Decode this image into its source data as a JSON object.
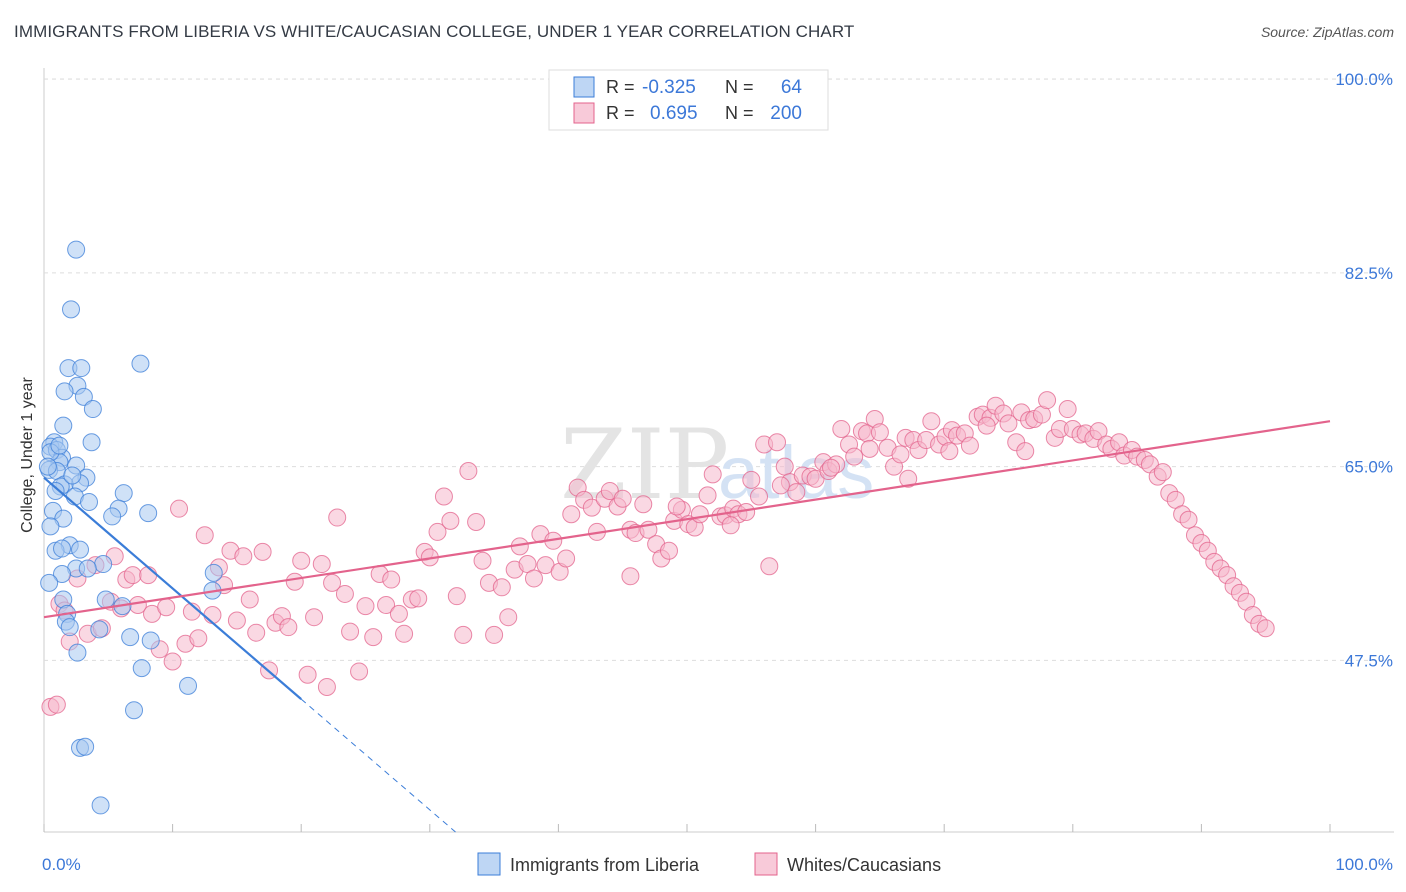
{
  "title": "IMMIGRANTS FROM LIBERIA VS WHITE/CAUCASIAN COLLEGE, UNDER 1 YEAR CORRELATION CHART",
  "source": "Source: ZipAtlas.com",
  "watermark": "ZIPatlas",
  "colors": {
    "blue": "#3b7dd8",
    "blue_fill": "#a8c8f0",
    "pink": "#e3638c",
    "pink_fill": "#f5b8cc",
    "tick_label": "#3c78d8"
  },
  "legend_stats": [
    {
      "r_label": "R =",
      "r_value": "-0.325",
      "n_label": "N =",
      "n_value": "64"
    },
    {
      "r_label": "R =",
      "r_value": "0.695",
      "n_label": "N =",
      "n_value": "200"
    }
  ],
  "chart_data": {
    "type": "scatter",
    "ylabel": "College, Under 1 year",
    "xlabel": "",
    "xlim": [
      0,
      100
    ],
    "ylim": [
      32,
      101
    ],
    "x_tick_labels": [
      {
        "value": 0,
        "label": "0.0%"
      },
      {
        "value": 100,
        "label": "100.0%"
      }
    ],
    "y_tick_labels": [
      {
        "value": 100.0,
        "label": "100.0%"
      },
      {
        "value": 82.5,
        "label": "82.5%"
      },
      {
        "value": 65.0,
        "label": "65.0%"
      },
      {
        "value": 47.5,
        "label": "47.5%"
      }
    ],
    "series": [
      {
        "name": "Immigrants from Liberia",
        "color": "blue",
        "trend": {
          "x0": 0,
          "y0": 64.0,
          "x1": 20,
          "y1": 44.0,
          "dash_to_x": 32
        },
        "points": [
          [
            2.5,
            84.6
          ],
          [
            2.1,
            79.2
          ],
          [
            7.5,
            74.3
          ],
          [
            1.9,
            73.9
          ],
          [
            2.9,
            73.9
          ],
          [
            2.6,
            72.3
          ],
          [
            1.6,
            71.8
          ],
          [
            3.1,
            71.3
          ],
          [
            3.8,
            70.2
          ],
          [
            1.5,
            68.7
          ],
          [
            3.7,
            67.2
          ],
          [
            0.8,
            67.2
          ],
          [
            0.5,
            66.8
          ],
          [
            1.0,
            66.5
          ],
          [
            1.4,
            65.8
          ],
          [
            1.2,
            65.4
          ],
          [
            2.5,
            65.1
          ],
          [
            0.4,
            64.7
          ],
          [
            1.0,
            64.6
          ],
          [
            3.3,
            64.0
          ],
          [
            2.8,
            63.5
          ],
          [
            1.6,
            63.4
          ],
          [
            1.3,
            63.2
          ],
          [
            0.9,
            62.8
          ],
          [
            2.4,
            62.3
          ],
          [
            6.2,
            62.6
          ],
          [
            5.8,
            61.2
          ],
          [
            3.5,
            61.8
          ],
          [
            0.7,
            61.0
          ],
          [
            8.1,
            60.8
          ],
          [
            1.5,
            60.3
          ],
          [
            5.3,
            60.5
          ],
          [
            0.5,
            59.6
          ],
          [
            2.0,
            57.9
          ],
          [
            0.9,
            57.4
          ],
          [
            1.4,
            57.6
          ],
          [
            2.8,
            57.5
          ],
          [
            4.6,
            56.2
          ],
          [
            2.5,
            55.8
          ],
          [
            3.4,
            55.8
          ],
          [
            1.4,
            55.3
          ],
          [
            13.2,
            55.4
          ],
          [
            0.4,
            54.5
          ],
          [
            13.1,
            53.8
          ],
          [
            1.5,
            53.0
          ],
          [
            4.8,
            53.0
          ],
          [
            6.1,
            52.4
          ],
          [
            1.8,
            51.7
          ],
          [
            1.7,
            51.0
          ],
          [
            2.0,
            50.5
          ],
          [
            4.3,
            50.3
          ],
          [
            6.7,
            49.6
          ],
          [
            8.3,
            49.3
          ],
          [
            2.6,
            48.2
          ],
          [
            7.6,
            46.8
          ],
          [
            11.2,
            45.2
          ],
          [
            7.0,
            43.0
          ],
          [
            2.8,
            39.6
          ],
          [
            3.2,
            39.7
          ],
          [
            4.4,
            34.4
          ],
          [
            0.5,
            66.3
          ],
          [
            1.2,
            66.9
          ],
          [
            0.3,
            65.0
          ],
          [
            2.2,
            64.2
          ]
        ]
      },
      {
        "name": "Whites/Caucasians",
        "color": "pink",
        "trend": {
          "x0": 0,
          "y0": 51.4,
          "x1": 100,
          "y1": 69.1
        },
        "points": [
          [
            0.5,
            43.3
          ],
          [
            1.0,
            43.5
          ],
          [
            1.2,
            52.6
          ],
          [
            1.6,
            52.0
          ],
          [
            2.0,
            49.2
          ],
          [
            2.6,
            54.9
          ],
          [
            3.4,
            49.9
          ],
          [
            4.0,
            56.1
          ],
          [
            4.5,
            50.4
          ],
          [
            5.2,
            52.8
          ],
          [
            5.5,
            56.9
          ],
          [
            6.0,
            52.2
          ],
          [
            6.4,
            54.8
          ],
          [
            6.9,
            55.2
          ],
          [
            7.3,
            52.5
          ],
          [
            8.1,
            55.2
          ],
          [
            8.4,
            51.7
          ],
          [
            9.0,
            48.5
          ],
          [
            9.5,
            52.3
          ],
          [
            10.0,
            47.4
          ],
          [
            10.5,
            61.2
          ],
          [
            11.0,
            49.0
          ],
          [
            11.5,
            51.9
          ],
          [
            12.0,
            49.5
          ],
          [
            12.5,
            58.8
          ],
          [
            13.1,
            51.6
          ],
          [
            13.6,
            55.9
          ],
          [
            14.0,
            54.3
          ],
          [
            14.5,
            57.4
          ],
          [
            15.0,
            51.1
          ],
          [
            15.5,
            56.9
          ],
          [
            16.0,
            53.0
          ],
          [
            16.5,
            50.0
          ],
          [
            17.0,
            57.3
          ],
          [
            17.5,
            46.6
          ],
          [
            18.0,
            50.9
          ],
          [
            18.5,
            51.5
          ],
          [
            19.0,
            50.5
          ],
          [
            19.5,
            54.6
          ],
          [
            20.0,
            56.5
          ],
          [
            20.5,
            46.2
          ],
          [
            21.0,
            51.4
          ],
          [
            21.6,
            56.2
          ],
          [
            22.0,
            45.1
          ],
          [
            22.4,
            54.5
          ],
          [
            22.8,
            60.4
          ],
          [
            23.4,
            53.5
          ],
          [
            23.8,
            50.1
          ],
          [
            24.5,
            46.5
          ],
          [
            25.0,
            52.4
          ],
          [
            25.6,
            49.6
          ],
          [
            26.1,
            55.3
          ],
          [
            26.6,
            52.5
          ],
          [
            27.0,
            54.8
          ],
          [
            27.6,
            51.7
          ],
          [
            28.0,
            49.9
          ],
          [
            28.6,
            53.0
          ],
          [
            29.1,
            53.1
          ],
          [
            29.6,
            57.3
          ],
          [
            30.0,
            56.8
          ],
          [
            30.6,
            59.1
          ],
          [
            31.1,
            62.3
          ],
          [
            31.6,
            60.1
          ],
          [
            32.1,
            53.3
          ],
          [
            32.6,
            49.8
          ],
          [
            33.0,
            64.6
          ],
          [
            33.6,
            60.0
          ],
          [
            34.1,
            56.5
          ],
          [
            34.6,
            54.5
          ],
          [
            35.0,
            49.8
          ],
          [
            35.6,
            54.1
          ],
          [
            36.1,
            51.4
          ],
          [
            36.6,
            55.7
          ],
          [
            37.0,
            57.8
          ],
          [
            37.6,
            56.2
          ],
          [
            38.1,
            54.9
          ],
          [
            38.6,
            58.9
          ],
          [
            39.0,
            56.1
          ],
          [
            39.6,
            58.3
          ],
          [
            40.1,
            55.5
          ],
          [
            40.6,
            56.7
          ],
          [
            41.0,
            60.7
          ],
          [
            41.5,
            63.1
          ],
          [
            42.0,
            62.0
          ],
          [
            42.6,
            61.3
          ],
          [
            43.0,
            59.1
          ],
          [
            43.6,
            62.1
          ],
          [
            44.0,
            62.8
          ],
          [
            44.6,
            61.4
          ],
          [
            45.0,
            62.1
          ],
          [
            45.6,
            59.3
          ],
          [
            46.0,
            59.0
          ],
          [
            46.6,
            61.6
          ],
          [
            47.0,
            59.3
          ],
          [
            47.6,
            58.0
          ],
          [
            48.0,
            56.7
          ],
          [
            48.6,
            57.4
          ],
          [
            49.0,
            60.1
          ],
          [
            49.6,
            61.1
          ],
          [
            50.1,
            59.8
          ],
          [
            50.6,
            59.5
          ],
          [
            51.0,
            60.7
          ],
          [
            51.6,
            62.4
          ],
          [
            52.0,
            64.3
          ],
          [
            52.6,
            60.5
          ],
          [
            53.0,
            60.6
          ],
          [
            53.6,
            61.2
          ],
          [
            54.0,
            60.7
          ],
          [
            54.6,
            60.9
          ],
          [
            55.0,
            63.8
          ],
          [
            55.6,
            62.3
          ],
          [
            56.0,
            67.0
          ],
          [
            56.4,
            56.0
          ],
          [
            57.0,
            67.2
          ],
          [
            57.6,
            65.0
          ],
          [
            58.0,
            63.6
          ],
          [
            58.5,
            62.7
          ],
          [
            59.0,
            64.2
          ],
          [
            59.6,
            64.1
          ],
          [
            60.0,
            63.9
          ],
          [
            60.6,
            65.4
          ],
          [
            61.0,
            64.6
          ],
          [
            61.6,
            65.2
          ],
          [
            62.0,
            68.4
          ],
          [
            62.6,
            67.0
          ],
          [
            63.0,
            65.9
          ],
          [
            63.6,
            68.2
          ],
          [
            64.0,
            68.0
          ],
          [
            64.6,
            69.3
          ],
          [
            65.0,
            68.1
          ],
          [
            65.6,
            66.7
          ],
          [
            66.1,
            65.0
          ],
          [
            66.6,
            66.1
          ],
          [
            67.0,
            67.6
          ],
          [
            67.6,
            67.4
          ],
          [
            68.0,
            66.5
          ],
          [
            68.6,
            67.4
          ],
          [
            69.0,
            69.1
          ],
          [
            69.6,
            67.0
          ],
          [
            70.1,
            67.7
          ],
          [
            70.6,
            68.3
          ],
          [
            71.0,
            67.8
          ],
          [
            71.6,
            68.0
          ],
          [
            72.0,
            66.9
          ],
          [
            72.6,
            69.5
          ],
          [
            73.0,
            69.7
          ],
          [
            73.6,
            69.4
          ],
          [
            74.0,
            70.5
          ],
          [
            74.6,
            69.8
          ],
          [
            75.0,
            68.9
          ],
          [
            75.6,
            67.2
          ],
          [
            76.0,
            69.9
          ],
          [
            76.6,
            69.2
          ],
          [
            77.0,
            69.3
          ],
          [
            77.6,
            69.7
          ],
          [
            78.0,
            71.0
          ],
          [
            78.6,
            67.6
          ],
          [
            79.0,
            68.4
          ],
          [
            79.6,
            70.2
          ],
          [
            80.0,
            68.4
          ],
          [
            80.6,
            67.9
          ],
          [
            81.0,
            68.0
          ],
          [
            81.6,
            67.5
          ],
          [
            82.0,
            68.2
          ],
          [
            82.6,
            67.0
          ],
          [
            83.0,
            66.6
          ],
          [
            83.6,
            67.2
          ],
          [
            84.0,
            66.0
          ],
          [
            84.6,
            66.5
          ],
          [
            85.0,
            65.9
          ],
          [
            85.6,
            65.6
          ],
          [
            86.0,
            65.2
          ],
          [
            86.6,
            64.1
          ],
          [
            87.0,
            64.5
          ],
          [
            87.5,
            62.6
          ],
          [
            88.0,
            62.0
          ],
          [
            88.5,
            60.7
          ],
          [
            89.0,
            60.2
          ],
          [
            89.5,
            58.8
          ],
          [
            90.0,
            58.1
          ],
          [
            90.5,
            57.4
          ],
          [
            91.0,
            56.4
          ],
          [
            91.5,
            55.8
          ],
          [
            92.0,
            55.2
          ],
          [
            92.5,
            54.2
          ],
          [
            93.0,
            53.6
          ],
          [
            93.5,
            52.8
          ],
          [
            94.0,
            51.6
          ],
          [
            94.5,
            50.8
          ],
          [
            95.0,
            50.4
          ],
          [
            45.6,
            55.1
          ],
          [
            49.2,
            61.4
          ],
          [
            53.4,
            59.7
          ],
          [
            57.3,
            63.3
          ],
          [
            61.2,
            64.9
          ],
          [
            64.2,
            66.6
          ],
          [
            67.2,
            63.9
          ],
          [
            70.4,
            66.4
          ],
          [
            73.3,
            68.7
          ],
          [
            76.3,
            66.4
          ]
        ]
      }
    ]
  }
}
